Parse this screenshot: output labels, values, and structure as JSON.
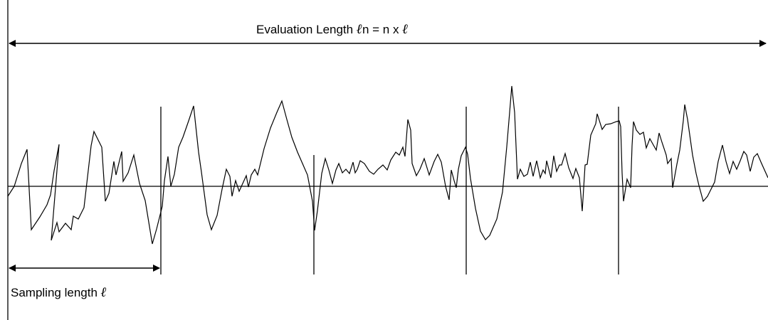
{
  "evaluation_label": {
    "prefix": "Evaluation Length ",
    "symbol": "ℓ",
    "suffix": "n = n x ",
    "symbol2": "ℓ"
  },
  "sampling_label": {
    "prefix": "Sampling length ",
    "symbol": "ℓ"
  },
  "line_color": "#000000",
  "background_color": "#ffffff"
}
